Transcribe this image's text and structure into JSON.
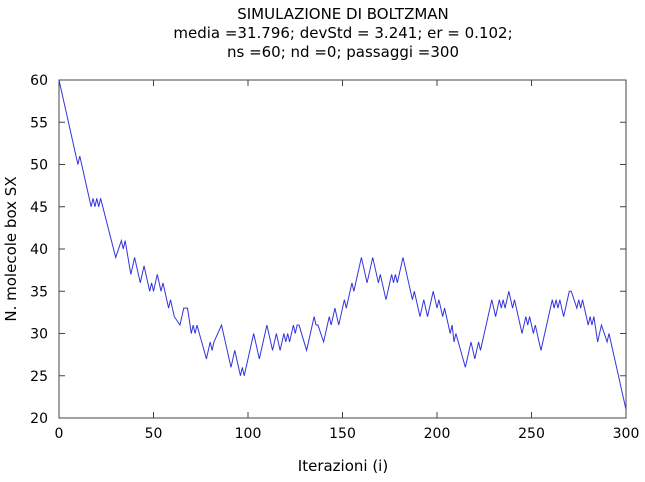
{
  "chart_data": {
    "type": "line",
    "title": [
      "SIMULAZIONE DI BOLTZMAN",
      "media =31.796; devStd = 3.241; er = 0.102;",
      "ns =60; nd =0; passaggi =300"
    ],
    "xlabel": "Iterazioni (i)",
    "ylabel": "N. molecole box SX",
    "xlim": [
      0,
      300
    ],
    "ylim": [
      20,
      60
    ],
    "xticks": [
      0,
      50,
      100,
      150,
      200,
      250,
      300
    ],
    "yticks": [
      20,
      25,
      30,
      35,
      40,
      45,
      50,
      55,
      60
    ],
    "grid": false,
    "line_color": "#3333dd",
    "series": [
      {
        "x": [
          0,
          10,
          11,
          17,
          18,
          19,
          20,
          21,
          22,
          30,
          33,
          34,
          35,
          38,
          40,
          43,
          45,
          48,
          49,
          50,
          52,
          54,
          55,
          58,
          59,
          61,
          64,
          66,
          68,
          70,
          71,
          72,
          73,
          78,
          80,
          81,
          82,
          86,
          91,
          93,
          96,
          97,
          98,
          103,
          106,
          110,
          113,
          115,
          117,
          119,
          120,
          121,
          122,
          124,
          125,
          126,
          127,
          131,
          135,
          136,
          137,
          140,
          143,
          144,
          146,
          148,
          151,
          152,
          155,
          156,
          160,
          163,
          166,
          169,
          170,
          171,
          173,
          176,
          177,
          178,
          179,
          182,
          187,
          188,
          191,
          193,
          195,
          198,
          199,
          200,
          201,
          203,
          204,
          207,
          208,
          209,
          210,
          215,
          218,
          220,
          222,
          223,
          229,
          231,
          233,
          234,
          235,
          236,
          238,
          240,
          241,
          245,
          247,
          248,
          249,
          251,
          252,
          255,
          261,
          262,
          263,
          264,
          265,
          267,
          270,
          271,
          274,
          275,
          276,
          277,
          280,
          281,
          282,
          283,
          285,
          287,
          290,
          291,
          300
        ],
        "y": [
          60,
          50,
          51,
          45,
          46,
          45,
          46,
          45,
          46,
          39,
          41,
          40,
          41,
          37,
          39,
          36,
          38,
          35,
          36,
          35,
          37,
          35,
          36,
          33,
          34,
          32,
          31,
          33,
          33,
          30,
          31,
          30,
          31,
          27,
          29,
          28,
          29,
          31,
          26,
          28,
          25,
          26,
          25,
          30,
          27,
          31,
          28,
          30,
          28,
          30,
          29,
          30,
          29,
          31,
          30,
          31,
          31,
          28,
          32,
          31,
          31,
          29,
          32,
          31,
          33,
          31,
          34,
          33,
          36,
          35,
          39,
          36,
          39,
          36,
          37,
          36,
          34,
          37,
          36,
          37,
          36,
          39,
          34,
          35,
          32,
          34,
          32,
          35,
          34,
          33,
          34,
          32,
          33,
          30,
          31,
          29,
          30,
          26,
          29,
          27,
          29,
          28,
          34,
          32,
          34,
          33,
          34,
          33,
          35,
          33,
          34,
          30,
          32,
          31,
          32,
          30,
          31,
          28,
          34,
          33,
          34,
          33,
          34,
          32,
          35,
          35,
          33,
          34,
          33,
          34,
          31,
          32,
          31,
          32,
          29,
          31,
          29,
          30,
          21
        ]
      }
    ]
  }
}
